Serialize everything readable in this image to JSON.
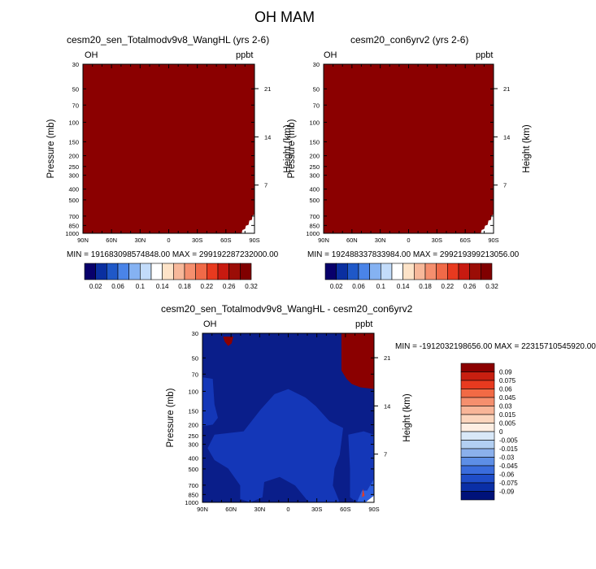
{
  "figure": {
    "title": "OH MAM"
  },
  "chart_data": [
    {
      "type": "heatmap",
      "title": "cesm20_sen_Totalmodv9v8_WangHL (yrs 2-6)",
      "variable_label": "OH",
      "units_label": "ppbt",
      "xlabel": "",
      "ylabel": "Pressure (mb)",
      "ylabel_right": "Height (km)",
      "x_ticks": [
        "90N",
        "60N",
        "30N",
        "0",
        "30S",
        "60S",
        "90S"
      ],
      "y_ticks": [
        "30",
        "50",
        "70",
        "100",
        "150",
        "200",
        "250",
        "300",
        "400",
        "500",
        "700",
        "850",
        "1000"
      ],
      "y_right_ticks": [
        "21",
        "14",
        "7"
      ],
      "y_scale": "log",
      "ylim": [
        1000,
        30
      ],
      "fill_value_description": "uniform maximum color",
      "min_max": "MIN = 191683098574848.00  MAX = 299192287232000.00",
      "colorbar": {
        "labels": [
          "0.02",
          "0.06",
          "0.1",
          "0.14",
          "0.18",
          "0.22",
          "0.26",
          "0.32"
        ],
        "colors": [
          "#08006b",
          "#0a2fa0",
          "#1f58c8",
          "#4a84e8",
          "#85b2f2",
          "#c3dcfa",
          "#ffffff",
          "#fde3c8",
          "#f7b89a",
          "#f58f6e",
          "#f06a48",
          "#e83a1f",
          "#c81a10",
          "#9b0d06",
          "#800000"
        ]
      }
    },
    {
      "type": "heatmap",
      "title": "cesm20_con6yrv2 (yrs 2-6)",
      "variable_label": "OH",
      "units_label": "ppbt",
      "xlabel": "",
      "ylabel": "Pressure (mb)",
      "ylabel_right": "Height (km)",
      "x_ticks": [
        "90N",
        "60N",
        "30N",
        "0",
        "30S",
        "60S",
        "90S"
      ],
      "y_ticks": [
        "30",
        "50",
        "70",
        "100",
        "150",
        "200",
        "250",
        "300",
        "400",
        "500",
        "700",
        "850",
        "1000"
      ],
      "y_right_ticks": [
        "21",
        "14",
        "7"
      ],
      "y_scale": "log",
      "ylim": [
        1000,
        30
      ],
      "min_max": "MIN = 192488337833984.00  MAX = 299219399213056.00",
      "colorbar": {
        "labels": [
          "0.02",
          "0.06",
          "0.1",
          "0.14",
          "0.18",
          "0.22",
          "0.26",
          "0.32"
        ]
      }
    },
    {
      "type": "heatmap",
      "title": "cesm20_sen_Totalmodv9v8_WangHL - cesm20_con6yrv2",
      "variable_label": "OH",
      "units_label": "ppbt",
      "xlabel": "",
      "ylabel": "Pressure (mb)",
      "ylabel_right": "Height (km)",
      "x_ticks": [
        "90N",
        "60N",
        "30N",
        "0",
        "30S",
        "60S",
        "90S"
      ],
      "y_ticks": [
        "30",
        "50",
        "70",
        "100",
        "150",
        "200",
        "250",
        "300",
        "400",
        "500",
        "700",
        "850",
        "1000"
      ],
      "y_right_ticks": [
        "21",
        "14",
        "7"
      ],
      "y_scale": "log",
      "ylim": [
        1000,
        30
      ],
      "min_max": "MIN = -1912032198656.00  MAX = 22315710545920.00",
      "colorbar": {
        "labels": [
          "0.09",
          "0.075",
          "0.06",
          "0.045",
          "0.03",
          "0.015",
          "0.005",
          "0",
          "-0.005",
          "-0.015",
          "-0.03",
          "-0.045",
          "-0.06",
          "-0.075",
          "-0.09"
        ],
        "colors": [
          "#8b0000",
          "#c81f10",
          "#e83a1f",
          "#f26a45",
          "#f58f6e",
          "#f8b598",
          "#fbd5bd",
          "#fdeee2",
          "#d8e8f8",
          "#b2cff2",
          "#8bb0ec",
          "#5d8ee6",
          "#3a6cdc",
          "#1f4dc8",
          "#0a2fa6",
          "#00127a"
        ]
      }
    }
  ]
}
